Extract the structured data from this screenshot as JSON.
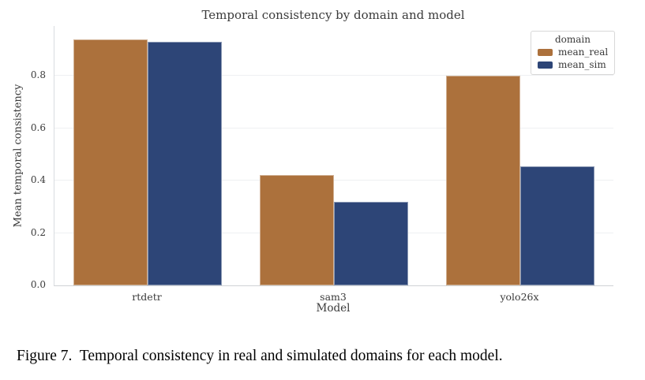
{
  "figure": {
    "caption": "Figure 7.  Temporal consistency in real and simulated domains for each model."
  },
  "chart_data": {
    "type": "bar",
    "title": "Temporal consistency by domain and model",
    "xlabel": "Model",
    "ylabel": "Mean temporal consistency",
    "categories": [
      "rtdetr",
      "sam3",
      "yolo26x"
    ],
    "series": [
      {
        "name": "mean_real",
        "color": "#AC713C",
        "values": [
          0.94,
          0.42,
          0.8
        ]
      },
      {
        "name": "mean_sim",
        "color": "#2D4577",
        "values": [
          0.93,
          0.32,
          0.455
        ]
      }
    ],
    "ylim": [
      0,
      0.99
    ],
    "yticks": [
      0.0,
      0.2,
      0.4,
      0.6,
      0.8
    ],
    "grid": true,
    "legend": {
      "title": "domain",
      "position": "upper right"
    }
  }
}
